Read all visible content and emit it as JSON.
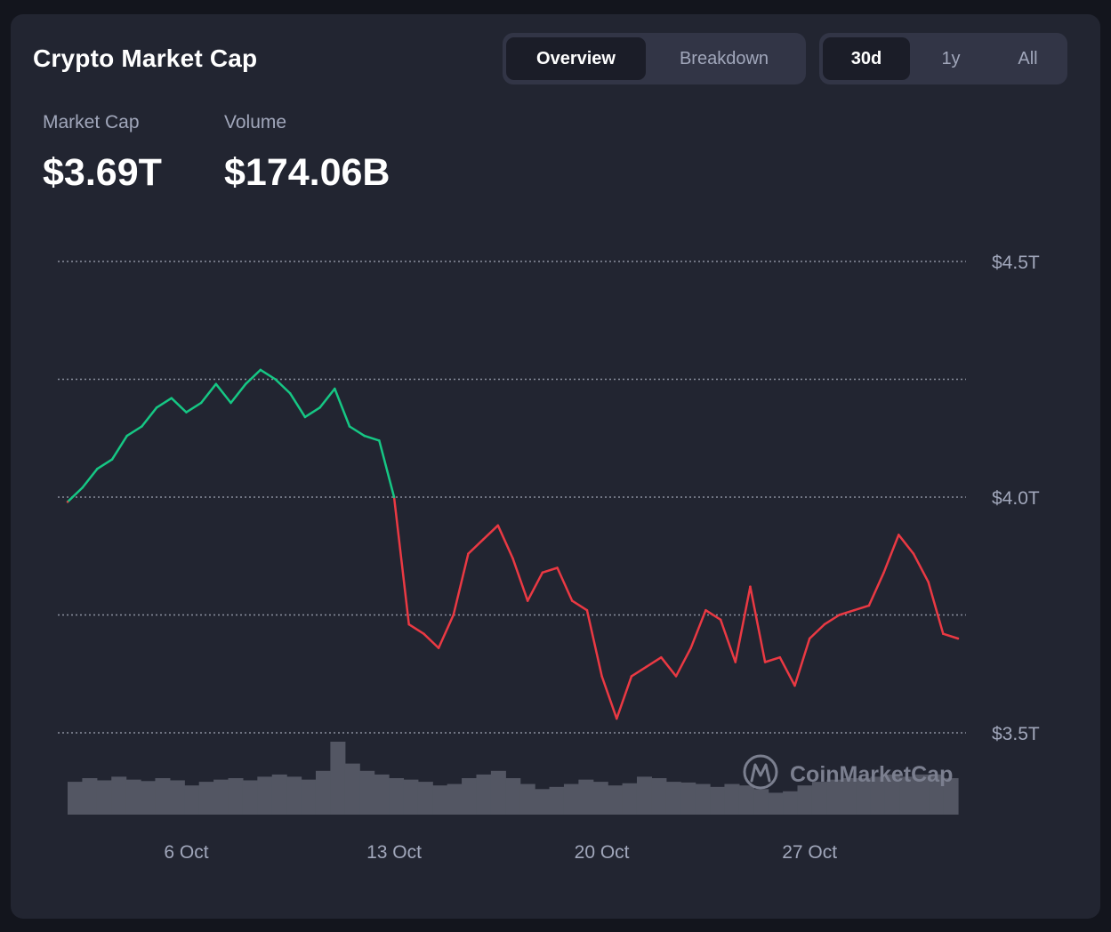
{
  "header": {
    "title": "Crypto Market Cap",
    "view_tabs": [
      {
        "label": "Overview",
        "active": true
      },
      {
        "label": "Breakdown",
        "active": false
      }
    ],
    "range_tabs": [
      {
        "label": "30d",
        "active": true
      },
      {
        "label": "1y",
        "active": false
      },
      {
        "label": "All",
        "active": false
      }
    ]
  },
  "stats": {
    "market_cap_label": "Market Cap",
    "market_cap_value": "$3.69T",
    "volume_label": "Volume",
    "volume_value": "$174.06B"
  },
  "watermark": "CoinMarketCap",
  "colors": {
    "up": "#16c784",
    "down": "#ea3943",
    "volume": "#535663",
    "grid": "#8a8f9e"
  },
  "chart_data": {
    "type": "line",
    "x_unit": "date",
    "x_range": [
      "2 Oct",
      "1 Nov"
    ],
    "xtick_labels": [
      "6 Oct",
      "13 Oct",
      "20 Oct",
      "27 Oct"
    ],
    "ytick_labels": [
      "$4.5T",
      "$4.0T",
      "$3.5T"
    ],
    "ylim": [
      3.5,
      4.5
    ],
    "y_unit": "trillion USD",
    "grid_values": [
      4.5,
      4.25,
      4.0,
      3.75,
      3.5
    ],
    "grid": "horizontal dotted",
    "reference_value": 4.0,
    "series": [
      {
        "x": [
          "2 Oct",
          "2.5 Oct",
          "3 Oct",
          "3.5 Oct",
          "4 Oct",
          "4.5 Oct",
          "5 Oct",
          "5.5 Oct",
          "6 Oct",
          "6.5 Oct",
          "7 Oct",
          "7.5 Oct",
          "8 Oct",
          "8.5 Oct",
          "9 Oct",
          "9.5 Oct",
          "10 Oct",
          "10.5 Oct",
          "11 Oct",
          "11.5 Oct",
          "12 Oct",
          "12.5 Oct",
          "13 Oct",
          "13.5 Oct",
          "14 Oct",
          "14.5 Oct",
          "15 Oct",
          "15.5 Oct",
          "16 Oct",
          "16.5 Oct",
          "17 Oct",
          "17.5 Oct",
          "18 Oct",
          "18.5 Oct",
          "19 Oct",
          "19.5 Oct",
          "20 Oct",
          "20.5 Oct",
          "21 Oct",
          "21.5 Oct",
          "22 Oct",
          "22.5 Oct",
          "23 Oct",
          "23.5 Oct",
          "24 Oct",
          "24.5 Oct",
          "25 Oct",
          "25.5 Oct",
          "26 Oct",
          "26.5 Oct",
          "27 Oct",
          "27.5 Oct",
          "28 Oct",
          "28.5 Oct",
          "29 Oct",
          "29.5 Oct",
          "30 Oct",
          "30.5 Oct",
          "31 Oct",
          "31.5 Oct",
          "1 Nov"
        ],
        "values": [
          3.99,
          4.02,
          4.06,
          4.08,
          4.13,
          4.15,
          4.19,
          4.21,
          4.18,
          4.2,
          4.24,
          4.2,
          4.24,
          4.27,
          4.25,
          4.22,
          4.17,
          4.19,
          4.23,
          4.15,
          4.13,
          4.12,
          4.0,
          3.73,
          3.71,
          3.68,
          3.75,
          3.88,
          3.91,
          3.94,
          3.87,
          3.78,
          3.84,
          3.85,
          3.78,
          3.76,
          3.62,
          3.53,
          3.62,
          3.64,
          3.66,
          3.62,
          3.68,
          3.76,
          3.74,
          3.65,
          3.81,
          3.65,
          3.66,
          3.6,
          3.7,
          3.73,
          3.75,
          3.76,
          3.77,
          3.84,
          3.92,
          3.88,
          3.82,
          3.71,
          3.7
        ]
      }
    ],
    "volume_series": [
      0.45,
      0.5,
      0.47,
      0.52,
      0.48,
      0.46,
      0.5,
      0.47,
      0.4,
      0.45,
      0.48,
      0.5,
      0.47,
      0.52,
      0.55,
      0.52,
      0.48,
      0.6,
      1.0,
      0.7,
      0.6,
      0.55,
      0.5,
      0.48,
      0.45,
      0.4,
      0.42,
      0.5,
      0.55,
      0.6,
      0.5,
      0.42,
      0.35,
      0.38,
      0.42,
      0.48,
      0.45,
      0.4,
      0.43,
      0.52,
      0.5,
      0.45,
      0.44,
      0.42,
      0.38,
      0.42,
      0.4,
      0.35,
      0.3,
      0.32,
      0.4,
      0.45,
      0.48,
      0.5,
      0.5,
      0.52,
      0.55,
      0.52,
      0.55,
      0.55,
      0.5
    ]
  }
}
